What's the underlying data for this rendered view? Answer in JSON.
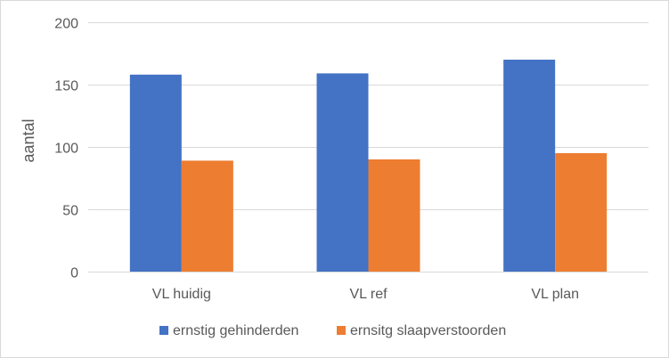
{
  "chart_data": {
    "type": "bar",
    "title": "",
    "xlabel": "",
    "ylabel": "aantal",
    "ylim": [
      0,
      200
    ],
    "yticks": [
      0,
      50,
      100,
      150,
      200
    ],
    "grid": true,
    "legend_position": "bottom",
    "categories": [
      "VL huidig",
      "VL ref",
      "VL plan"
    ],
    "series": [
      {
        "name": "ernstig gehinderden",
        "color": "#4472C4",
        "values": [
          158,
          159,
          170
        ]
      },
      {
        "name": "ernsitg slaapverstoorden",
        "color": "#ED7D31",
        "values": [
          89,
          90,
          95
        ]
      }
    ]
  }
}
